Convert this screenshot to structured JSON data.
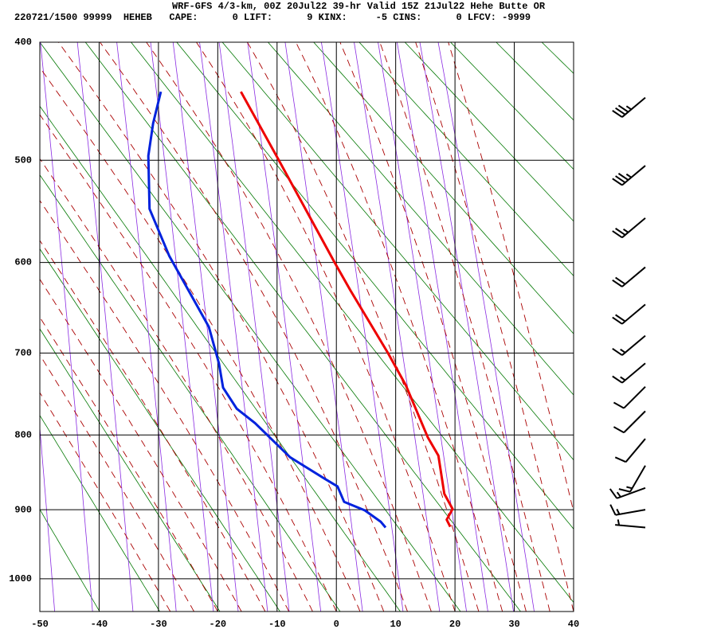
{
  "chart_data": {
    "type": "skewt",
    "title": "WRF-GFS 4/3-km, 00Z 20Jul22 39-hr Valid 15Z 21Jul22 Hehe Butte OR",
    "subtitle": "220721/1500 99999  HEHEB   CAPE:      0 LIFT:      9 KINX:     -5 CINS:      0 LFCV: -9999",
    "xlim": [
      -50,
      40
    ],
    "xticks": [
      -50,
      -40,
      -30,
      -20,
      -10,
      0,
      10,
      20,
      30,
      40
    ],
    "ylim": [
      400,
      1050
    ],
    "yticks": [
      400,
      500,
      600,
      700,
      800,
      900,
      1000
    ],
    "grid": true,
    "series": [
      {
        "color": "#ee0000",
        "pressure": [
          924,
          914,
          899,
          878,
          827,
          803,
          738,
          700,
          630,
          600,
          500,
          440
        ],
        "values": [
          19.2,
          18.6,
          19.6,
          18.2,
          17.2,
          15.4,
          11.7,
          8.7,
          2.4,
          -0.3,
          -9.7,
          -16.1
        ]
      },
      {
        "color": "#0022dd",
        "pressure": [
          925,
          917,
          901,
          889,
          868,
          858,
          829,
          785,
          767,
          741,
          712,
          670,
          593,
          546,
          496,
          467,
          440
        ],
        "values": [
          8.3,
          7.5,
          4.8,
          1.3,
          0.2,
          -1.9,
          -7.8,
          -13.7,
          -16.8,
          -19.1,
          -19.8,
          -21.5,
          -28.2,
          -31.5,
          -31.7,
          -30.9,
          -29.6
        ]
      }
    ],
    "wind": {
      "pressure": [
        445,
        505,
        555,
        605,
        645,
        680,
        712,
        740,
        770,
        805,
        840,
        870,
        900,
        925
      ],
      "direction": [
        230,
        230,
        230,
        230,
        230,
        230,
        230,
        225,
        225,
        220,
        210,
        250,
        260,
        275
      ],
      "speed": [
        35,
        35,
        25,
        20,
        20,
        15,
        15,
        10,
        10,
        10,
        15,
        15,
        15,
        5
      ]
    }
  }
}
